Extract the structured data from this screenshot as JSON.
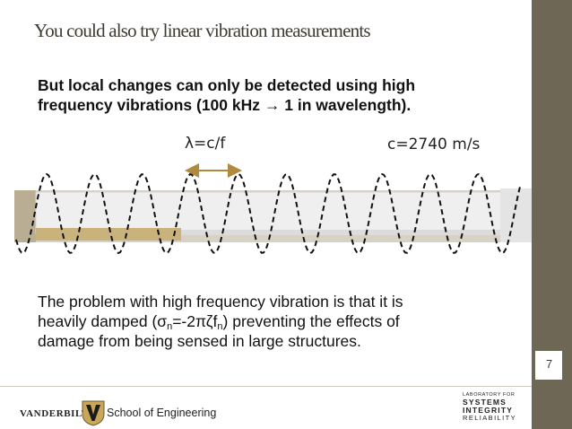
{
  "slide": {
    "title": "You could also try linear vibration measurements",
    "lead": {
      "line1": "But local changes can only be detected using high",
      "line2_pre": "frequency vibrations (100 kHz ",
      "arrow": "→",
      "line2_post": " 1 in wavelength)."
    },
    "figure": {
      "formula": "λ=c/f",
      "speed": "c=2740 m/s"
    },
    "body": {
      "line1": "The problem with high frequency vibration is that it is",
      "line2_pre": "heavily damped (σ",
      "sub_n1": "n",
      "line2_mid": "=-2πζf",
      "sub_n2": "n",
      "line2_post": ") preventing the effects of",
      "line3": "damage from being sensed in large structures."
    },
    "page_number": "7"
  },
  "footer": {
    "university": "VANDERBILT",
    "school": "School of Engineering",
    "lab_line1": "LABORATORY FOR",
    "lab_line2": "SYSTEMS",
    "lab_line3": "INTEGRITY",
    "lab_line4": "RELIABILITY"
  },
  "colors": {
    "sidebar": "#6e6755",
    "arrow": "#b08a3e",
    "beam": "#efefef",
    "gold_block": "#c9b27c"
  },
  "icons": {
    "vu_logo": "vanderbilt-v-shield-icon",
    "lab_logo": "sir-lab-logo"
  }
}
